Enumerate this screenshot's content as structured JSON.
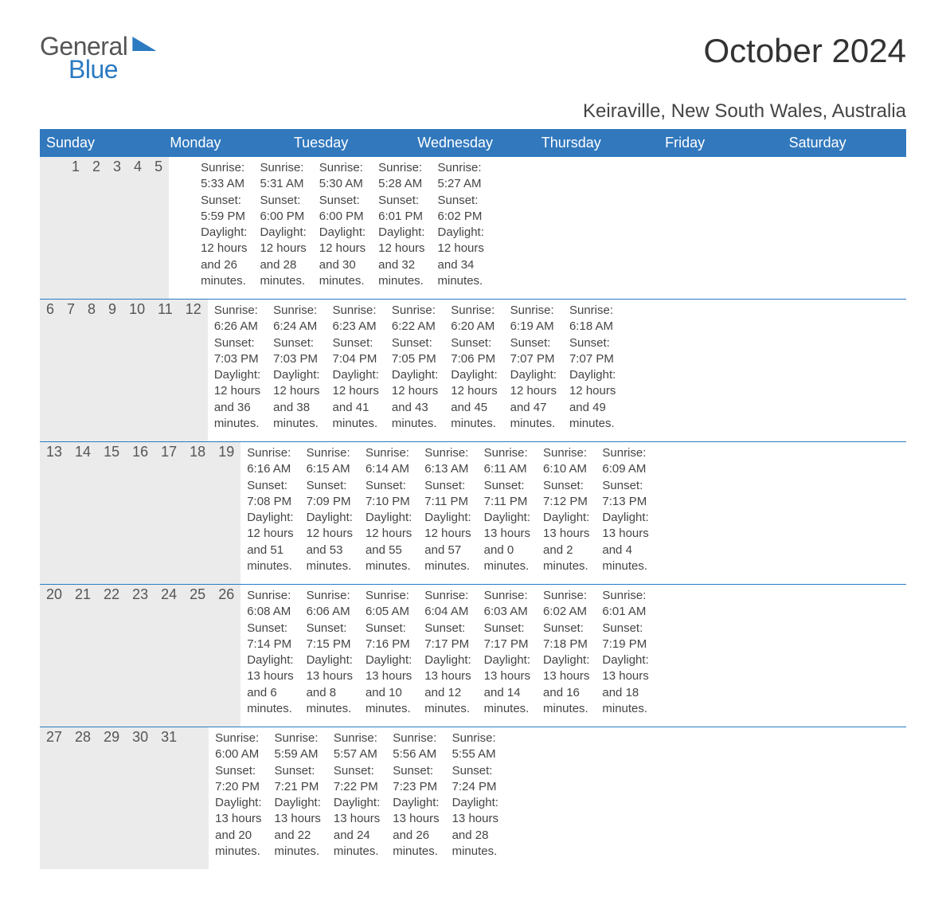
{
  "brand": {
    "part1": "General",
    "part2": "Blue"
  },
  "colors": {
    "accent": "#2b7ac2",
    "header_bg": "#3178bd",
    "band_bg": "#ebebeb",
    "text": "#444444",
    "title": "#333333",
    "white": "#ffffff"
  },
  "title": "October 2024",
  "location": "Keiraville, New South Wales, Australia",
  "weekdays": [
    "Sunday",
    "Monday",
    "Tuesday",
    "Wednesday",
    "Thursday",
    "Friday",
    "Saturday"
  ],
  "weeks": [
    [
      {
        "n": "",
        "sr": "",
        "ss": "",
        "dl1": "",
        "dl2": ""
      },
      {
        "n": "",
        "sr": "",
        "ss": "",
        "dl1": "",
        "dl2": ""
      },
      {
        "n": "1",
        "sr": "Sunrise: 5:33 AM",
        "ss": "Sunset: 5:59 PM",
        "dl1": "Daylight: 12 hours",
        "dl2": "and 26 minutes."
      },
      {
        "n": "2",
        "sr": "Sunrise: 5:31 AM",
        "ss": "Sunset: 6:00 PM",
        "dl1": "Daylight: 12 hours",
        "dl2": "and 28 minutes."
      },
      {
        "n": "3",
        "sr": "Sunrise: 5:30 AM",
        "ss": "Sunset: 6:00 PM",
        "dl1": "Daylight: 12 hours",
        "dl2": "and 30 minutes."
      },
      {
        "n": "4",
        "sr": "Sunrise: 5:28 AM",
        "ss": "Sunset: 6:01 PM",
        "dl1": "Daylight: 12 hours",
        "dl2": "and 32 minutes."
      },
      {
        "n": "5",
        "sr": "Sunrise: 5:27 AM",
        "ss": "Sunset: 6:02 PM",
        "dl1": "Daylight: 12 hours",
        "dl2": "and 34 minutes."
      }
    ],
    [
      {
        "n": "6",
        "sr": "Sunrise: 6:26 AM",
        "ss": "Sunset: 7:03 PM",
        "dl1": "Daylight: 12 hours",
        "dl2": "and 36 minutes."
      },
      {
        "n": "7",
        "sr": "Sunrise: 6:24 AM",
        "ss": "Sunset: 7:03 PM",
        "dl1": "Daylight: 12 hours",
        "dl2": "and 38 minutes."
      },
      {
        "n": "8",
        "sr": "Sunrise: 6:23 AM",
        "ss": "Sunset: 7:04 PM",
        "dl1": "Daylight: 12 hours",
        "dl2": "and 41 minutes."
      },
      {
        "n": "9",
        "sr": "Sunrise: 6:22 AM",
        "ss": "Sunset: 7:05 PM",
        "dl1": "Daylight: 12 hours",
        "dl2": "and 43 minutes."
      },
      {
        "n": "10",
        "sr": "Sunrise: 6:20 AM",
        "ss": "Sunset: 7:06 PM",
        "dl1": "Daylight: 12 hours",
        "dl2": "and 45 minutes."
      },
      {
        "n": "11",
        "sr": "Sunrise: 6:19 AM",
        "ss": "Sunset: 7:07 PM",
        "dl1": "Daylight: 12 hours",
        "dl2": "and 47 minutes."
      },
      {
        "n": "12",
        "sr": "Sunrise: 6:18 AM",
        "ss": "Sunset: 7:07 PM",
        "dl1": "Daylight: 12 hours",
        "dl2": "and 49 minutes."
      }
    ],
    [
      {
        "n": "13",
        "sr": "Sunrise: 6:16 AM",
        "ss": "Sunset: 7:08 PM",
        "dl1": "Daylight: 12 hours",
        "dl2": "and 51 minutes."
      },
      {
        "n": "14",
        "sr": "Sunrise: 6:15 AM",
        "ss": "Sunset: 7:09 PM",
        "dl1": "Daylight: 12 hours",
        "dl2": "and 53 minutes."
      },
      {
        "n": "15",
        "sr": "Sunrise: 6:14 AM",
        "ss": "Sunset: 7:10 PM",
        "dl1": "Daylight: 12 hours",
        "dl2": "and 55 minutes."
      },
      {
        "n": "16",
        "sr": "Sunrise: 6:13 AM",
        "ss": "Sunset: 7:11 PM",
        "dl1": "Daylight: 12 hours",
        "dl2": "and 57 minutes."
      },
      {
        "n": "17",
        "sr": "Sunrise: 6:11 AM",
        "ss": "Sunset: 7:11 PM",
        "dl1": "Daylight: 13 hours",
        "dl2": "and 0 minutes."
      },
      {
        "n": "18",
        "sr": "Sunrise: 6:10 AM",
        "ss": "Sunset: 7:12 PM",
        "dl1": "Daylight: 13 hours",
        "dl2": "and 2 minutes."
      },
      {
        "n": "19",
        "sr": "Sunrise: 6:09 AM",
        "ss": "Sunset: 7:13 PM",
        "dl1": "Daylight: 13 hours",
        "dl2": "and 4 minutes."
      }
    ],
    [
      {
        "n": "20",
        "sr": "Sunrise: 6:08 AM",
        "ss": "Sunset: 7:14 PM",
        "dl1": "Daylight: 13 hours",
        "dl2": "and 6 minutes."
      },
      {
        "n": "21",
        "sr": "Sunrise: 6:06 AM",
        "ss": "Sunset: 7:15 PM",
        "dl1": "Daylight: 13 hours",
        "dl2": "and 8 minutes."
      },
      {
        "n": "22",
        "sr": "Sunrise: 6:05 AM",
        "ss": "Sunset: 7:16 PM",
        "dl1": "Daylight: 13 hours",
        "dl2": "and 10 minutes."
      },
      {
        "n": "23",
        "sr": "Sunrise: 6:04 AM",
        "ss": "Sunset: 7:17 PM",
        "dl1": "Daylight: 13 hours",
        "dl2": "and 12 minutes."
      },
      {
        "n": "24",
        "sr": "Sunrise: 6:03 AM",
        "ss": "Sunset: 7:17 PM",
        "dl1": "Daylight: 13 hours",
        "dl2": "and 14 minutes."
      },
      {
        "n": "25",
        "sr": "Sunrise: 6:02 AM",
        "ss": "Sunset: 7:18 PM",
        "dl1": "Daylight: 13 hours",
        "dl2": "and 16 minutes."
      },
      {
        "n": "26",
        "sr": "Sunrise: 6:01 AM",
        "ss": "Sunset: 7:19 PM",
        "dl1": "Daylight: 13 hours",
        "dl2": "and 18 minutes."
      }
    ],
    [
      {
        "n": "27",
        "sr": "Sunrise: 6:00 AM",
        "ss": "Sunset: 7:20 PM",
        "dl1": "Daylight: 13 hours",
        "dl2": "and 20 minutes."
      },
      {
        "n": "28",
        "sr": "Sunrise: 5:59 AM",
        "ss": "Sunset: 7:21 PM",
        "dl1": "Daylight: 13 hours",
        "dl2": "and 22 minutes."
      },
      {
        "n": "29",
        "sr": "Sunrise: 5:57 AM",
        "ss": "Sunset: 7:22 PM",
        "dl1": "Daylight: 13 hours",
        "dl2": "and 24 minutes."
      },
      {
        "n": "30",
        "sr": "Sunrise: 5:56 AM",
        "ss": "Sunset: 7:23 PM",
        "dl1": "Daylight: 13 hours",
        "dl2": "and 26 minutes."
      },
      {
        "n": "31",
        "sr": "Sunrise: 5:55 AM",
        "ss": "Sunset: 7:24 PM",
        "dl1": "Daylight: 13 hours",
        "dl2": "and 28 minutes."
      },
      {
        "n": "",
        "sr": "",
        "ss": "",
        "dl1": "",
        "dl2": ""
      },
      {
        "n": "",
        "sr": "",
        "ss": "",
        "dl1": "",
        "dl2": ""
      }
    ]
  ]
}
